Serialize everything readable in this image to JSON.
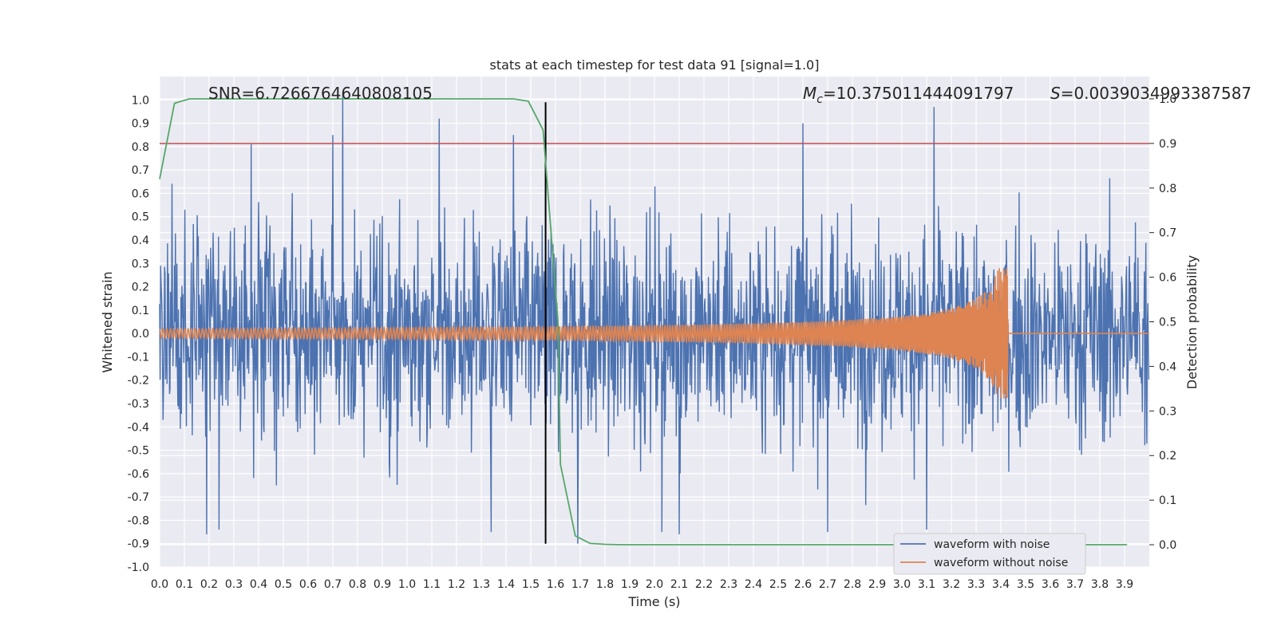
{
  "chart_data": {
    "type": "line",
    "title": "stats at each timestep for test data 91 [signal=1.0]",
    "xlabel": "Time (s)",
    "ylabel": "Whitened strain",
    "y2label": "Detection probability",
    "xlim": [
      0.0,
      4.0
    ],
    "ylim": [
      -1.0,
      1.1
    ],
    "y2lim": [
      -0.05,
      1.05
    ],
    "x_ticks": [
      0.0,
      0.1,
      0.2,
      0.3,
      0.4,
      0.5,
      0.6,
      0.7,
      0.8,
      0.9,
      1.0,
      1.1,
      1.2,
      1.3,
      1.4,
      1.5,
      1.6,
      1.7,
      1.8,
      1.9,
      2.0,
      2.1,
      2.2,
      2.3,
      2.4,
      2.5,
      2.6,
      2.7,
      2.8,
      2.9,
      3.0,
      3.1,
      3.2,
      3.3,
      3.4,
      3.5,
      3.6,
      3.7,
      3.8,
      3.9
    ],
    "y_ticks": [
      -1.0,
      -0.9,
      -0.8,
      -0.7,
      -0.6,
      -0.5,
      -0.4,
      -0.3,
      -0.2,
      -0.1,
      0.0,
      0.1,
      0.2,
      0.3,
      0.4,
      0.5,
      0.6,
      0.7,
      0.8,
      0.9,
      1.0
    ],
    "y2_ticks": [
      0.0,
      0.1,
      0.2,
      0.3,
      0.4,
      0.5,
      0.6,
      0.7,
      0.8,
      0.9,
      1.0
    ],
    "grid": true,
    "legend": "lower-right",
    "legend_entries": [
      {
        "name": "waveform with noise",
        "color": "#4c72b0"
      },
      {
        "name": "waveform without noise",
        "color": "#dd8452"
      }
    ],
    "annotations": {
      "snr": "SNR=6.7266764640808105",
      "mc_symbol": "M",
      "mc_sub": "c",
      "mc_value": "=10.375011444091797",
      "s_symbol": "S",
      "s_value": "=0.0039034993387587"
    },
    "threshold": {
      "axis": "y2",
      "value": 0.9,
      "color": "#c44e52"
    },
    "vline": {
      "x": 1.56,
      "color": "#000000"
    },
    "merger_time": 3.43,
    "detection_probability": {
      "color": "#55a868",
      "x": [
        0.0,
        0.06,
        0.12,
        0.18,
        0.25,
        0.31,
        0.37,
        0.43,
        0.5,
        0.56,
        0.62,
        0.68,
        0.74,
        0.81,
        0.87,
        0.93,
        0.99,
        1.05,
        1.12,
        1.18,
        1.24,
        1.3,
        1.36,
        1.43,
        1.49,
        1.55,
        1.61,
        1.62,
        1.68,
        1.74,
        1.8,
        1.87,
        1.93,
        1.99,
        2.05,
        2.11,
        2.17,
        2.24,
        2.3,
        2.36,
        2.42,
        2.48,
        2.55,
        2.61,
        2.67,
        2.73,
        2.79,
        2.86,
        2.92,
        2.98,
        3.04,
        3.1,
        3.16,
        3.23,
        3.29,
        3.35,
        3.41,
        3.47,
        3.54,
        3.6,
        3.66,
        3.72,
        3.78,
        3.85,
        3.91
      ],
      "y": [
        0.82,
        0.99,
        1.0,
        1.0,
        1.0,
        1.0,
        1.0,
        1.0,
        1.0,
        1.0,
        1.0,
        1.0,
        1.0,
        1.0,
        1.0,
        1.0,
        1.0,
        1.0,
        1.0,
        1.0,
        1.0,
        1.0,
        1.0,
        1.0,
        0.995,
        0.93,
        0.5,
        0.18,
        0.02,
        0.003,
        0.001,
        0.0,
        0.0,
        0.0,
        0.0,
        0.0,
        0.0,
        0.0,
        0.0,
        0.0,
        0.0,
        0.0,
        0.0,
        0.0,
        0.0,
        0.0,
        0.0,
        0.0,
        0.0,
        0.0,
        0.0,
        0.0,
        0.0,
        0.0,
        0.0,
        0.0,
        0.0,
        0.0,
        0.0,
        0.0,
        0.0,
        0.0,
        0.0,
        0.0,
        0.0
      ]
    },
    "noise_peaks": [
      {
        "x": 0.37,
        "y": 0.81
      },
      {
        "x": 0.7,
        "y": 0.85
      },
      {
        "x": 0.74,
        "y": 1.03
      },
      {
        "x": 1.13,
        "y": 0.92
      },
      {
        "x": 1.43,
        "y": 0.85
      },
      {
        "x": 1.56,
        "y": 0.9
      },
      {
        "x": 2.6,
        "y": 0.9
      },
      {
        "x": 3.1,
        "y": 0.9
      },
      {
        "x": 3.13,
        "y": 0.97
      },
      {
        "x": 0.19,
        "y": -0.86
      },
      {
        "x": 0.24,
        "y": -0.84
      },
      {
        "x": 1.34,
        "y": -0.85
      },
      {
        "x": 1.69,
        "y": -0.9
      },
      {
        "x": 2.03,
        "y": -0.85
      },
      {
        "x": 2.1,
        "y": -0.86
      },
      {
        "x": 2.7,
        "y": -0.85
      },
      {
        "x": 3.1,
        "y": -0.84
      }
    ]
  }
}
